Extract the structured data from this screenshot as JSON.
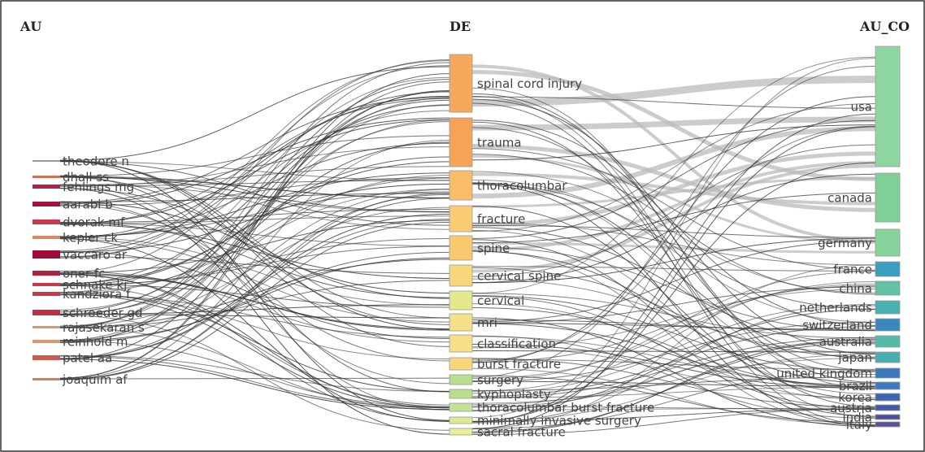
{
  "columns": [
    {
      "title": "AU",
      "nodes": [
        {
          "label": "theodore n",
          "color": "#9a9a9a"
        },
        {
          "label": "dhall ss",
          "color": "#d2705a"
        },
        {
          "label": "fehlings mg",
          "color": "#b5203f"
        },
        {
          "label": "aarabi b",
          "color": "#a3123a"
        },
        {
          "label": "dvorak mf",
          "color": "#c83a4a"
        },
        {
          "label": "kepler ck",
          "color": "#de8860"
        },
        {
          "label": "vaccaro ar",
          "color": "#9e0c38"
        },
        {
          "label": "oner fc",
          "color": "#b5203f"
        },
        {
          "label": "schnake kj",
          "color": "#c83a4a"
        },
        {
          "label": "kandziora f",
          "color": "#c83a4a"
        },
        {
          "label": "schroeder gd",
          "color": "#c02e45"
        },
        {
          "label": "rajasekaran s",
          "color": "#d89a6c"
        },
        {
          "label": "reinhold m",
          "color": "#d89a6c"
        },
        {
          "label": "patel aa",
          "color": "#cf5a50"
        },
        {
          "label": "joaquim af",
          "color": "#d2805f"
        }
      ]
    },
    {
      "title": "DE",
      "nodes": [
        {
          "label": "spinal cord injury",
          "color": "#f6a95a"
        },
        {
          "label": "trauma",
          "color": "#f5a455"
        },
        {
          "label": "thoracolumbar",
          "color": "#f8bd66"
        },
        {
          "label": "fracture",
          "color": "#f9cb72"
        },
        {
          "label": "spine",
          "color": "#f9c96e"
        },
        {
          "label": "cervical spine",
          "color": "#f9d57b"
        },
        {
          "label": "cervical",
          "color": "#e4ea8c"
        },
        {
          "label": "mri",
          "color": "#f6e189"
        },
        {
          "label": "classification",
          "color": "#f6e189"
        },
        {
          "label": "burst fracture",
          "color": "#f8d67a"
        },
        {
          "label": "surgery",
          "color": "#b9de8e"
        },
        {
          "label": "kyphoplasty",
          "color": "#b9de8e"
        },
        {
          "label": "thoracolumbar burst fracture",
          "color": "#c3e296"
        },
        {
          "label": "minimally invasive surgery",
          "color": "#dbeb96"
        },
        {
          "label": "sacral fracture",
          "color": "#e8ef9a"
        }
      ]
    },
    {
      "title": "AU_CO",
      "nodes": [
        {
          "label": "usa",
          "color": "#8ed6a0"
        },
        {
          "label": "canada",
          "color": "#7fcf99"
        },
        {
          "label": "germany",
          "color": "#86d39c"
        },
        {
          "label": "france",
          "color": "#3a9fbe"
        },
        {
          "label": "china",
          "color": "#62c0a4"
        },
        {
          "label": "netherlands",
          "color": "#48b0ad"
        },
        {
          "label": "switzerland",
          "color": "#3b86bf"
        },
        {
          "label": "australia",
          "color": "#55b9a8"
        },
        {
          "label": "japan",
          "color": "#4aaeb0"
        },
        {
          "label": "united kingdom",
          "color": "#3a78bb"
        },
        {
          "label": "brazil",
          "color": "#3a7cbc"
        },
        {
          "label": "korea",
          "color": "#3d64b0"
        },
        {
          "label": "austria",
          "color": "#4657a6"
        },
        {
          "label": "india",
          "color": "#4c4f9d"
        },
        {
          "label": "italy",
          "color": "#5a4f98"
        }
      ]
    }
  ]
}
